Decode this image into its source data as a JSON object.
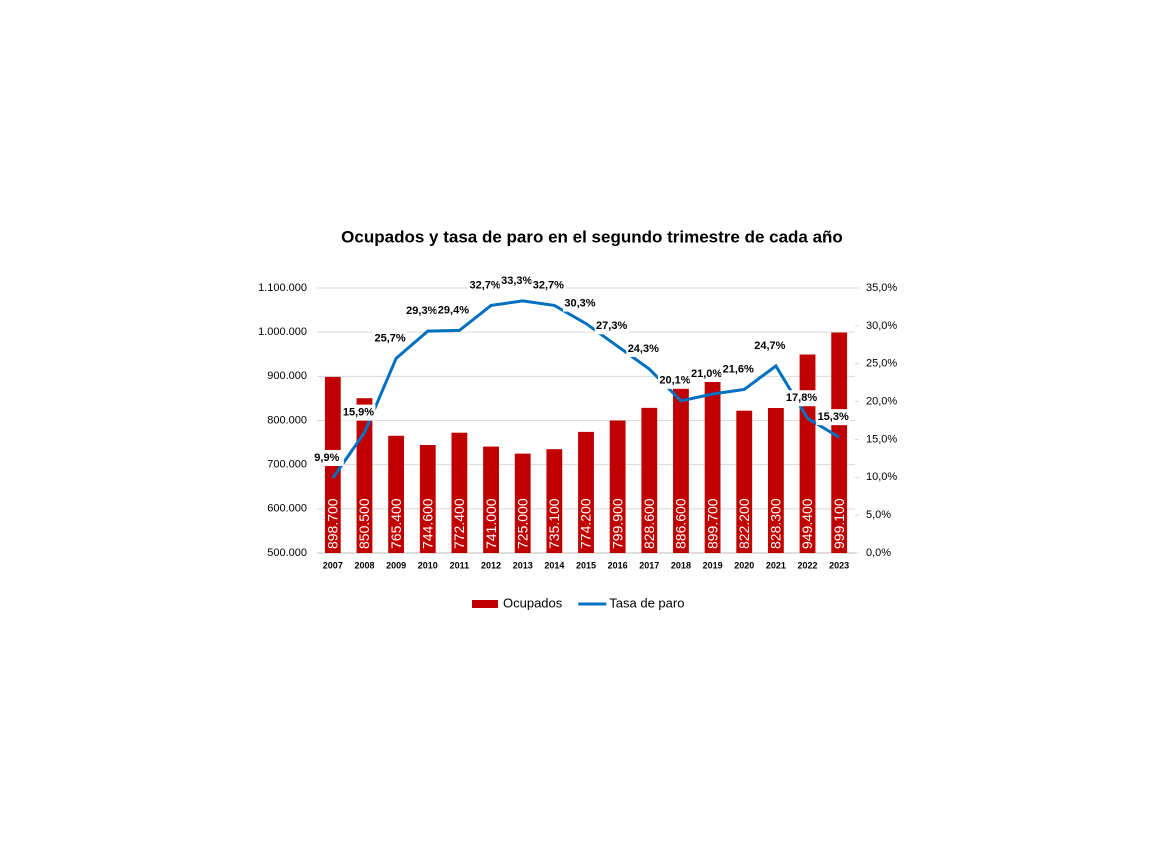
{
  "chart_data": {
    "type": "bar-line",
    "title": "Ocupados y tasa de paro en el segundo trimestre de cada año",
    "categories": [
      "2007",
      "2008",
      "2009",
      "2010",
      "2011",
      "2012",
      "2013",
      "2014",
      "2015",
      "2016",
      "2017",
      "2018",
      "2019",
      "2020",
      "2021",
      "2022",
      "2023"
    ],
    "series": [
      {
        "name": "Ocupados",
        "color": "#c00000",
        "type": "bar",
        "values": [
          898700,
          850500,
          765400,
          744600,
          772400,
          741000,
          725000,
          735100,
          774200,
          799900,
          828600,
          886600,
          899700,
          822200,
          828300,
          949400,
          999100
        ],
        "value_labels": [
          "898.700",
          "850.500",
          "765.400",
          "744.600",
          "772.400",
          "741.000",
          "725.000",
          "735.100",
          "774.200",
          "799.900",
          "828.600",
          "886.600",
          "899.700",
          "822.200",
          "828.300",
          "949.400",
          "999.100"
        ]
      },
      {
        "name": "Tasa de paro",
        "color": "#0070c0",
        "type": "line",
        "axis": "y2",
        "values": [
          9.9,
          15.9,
          25.7,
          29.3,
          29.4,
          32.7,
          33.3,
          32.7,
          30.3,
          27.3,
          24.3,
          20.1,
          21.0,
          21.6,
          24.7,
          17.8,
          15.3
        ],
        "value_labels": [
          "9,9%",
          "15,9%",
          "25,7%",
          "29,3%",
          "29,4%",
          "32,7%",
          "33,3%",
          "32,7%",
          "30,3%",
          "27,3%",
          "24,3%",
          "20,1%",
          "21,0%",
          "21,6%",
          "24,7%",
          "17,8%",
          "15,3%"
        ]
      }
    ],
    "ylim": [
      500000,
      1100000
    ],
    "yticks": [
      {
        "value": 500000,
        "label": "500.000"
      },
      {
        "value": 600000,
        "label": "600.000"
      },
      {
        "value": 700000,
        "label": "700.000"
      },
      {
        "value": 800000,
        "label": "800.000"
      },
      {
        "value": 900000,
        "label": "900.000"
      },
      {
        "value": 1000000,
        "label": "1.000.000"
      },
      {
        "value": 1100000,
        "label": "1.100.000"
      }
    ],
    "y2lim": [
      0,
      35
    ],
    "y2ticks": [
      {
        "value": 0,
        "label": "0,0%"
      },
      {
        "value": 5,
        "label": "5,0%"
      },
      {
        "value": 10,
        "label": "10,0%"
      },
      {
        "value": 15,
        "label": "15,0%"
      },
      {
        "value": 20,
        "label": "20,0%"
      },
      {
        "value": 25,
        "label": "25,0%"
      },
      {
        "value": 30,
        "label": "30,0%"
      },
      {
        "value": 35,
        "label": "35,0%"
      }
    ],
    "grid": true,
    "legend": "bottom"
  }
}
